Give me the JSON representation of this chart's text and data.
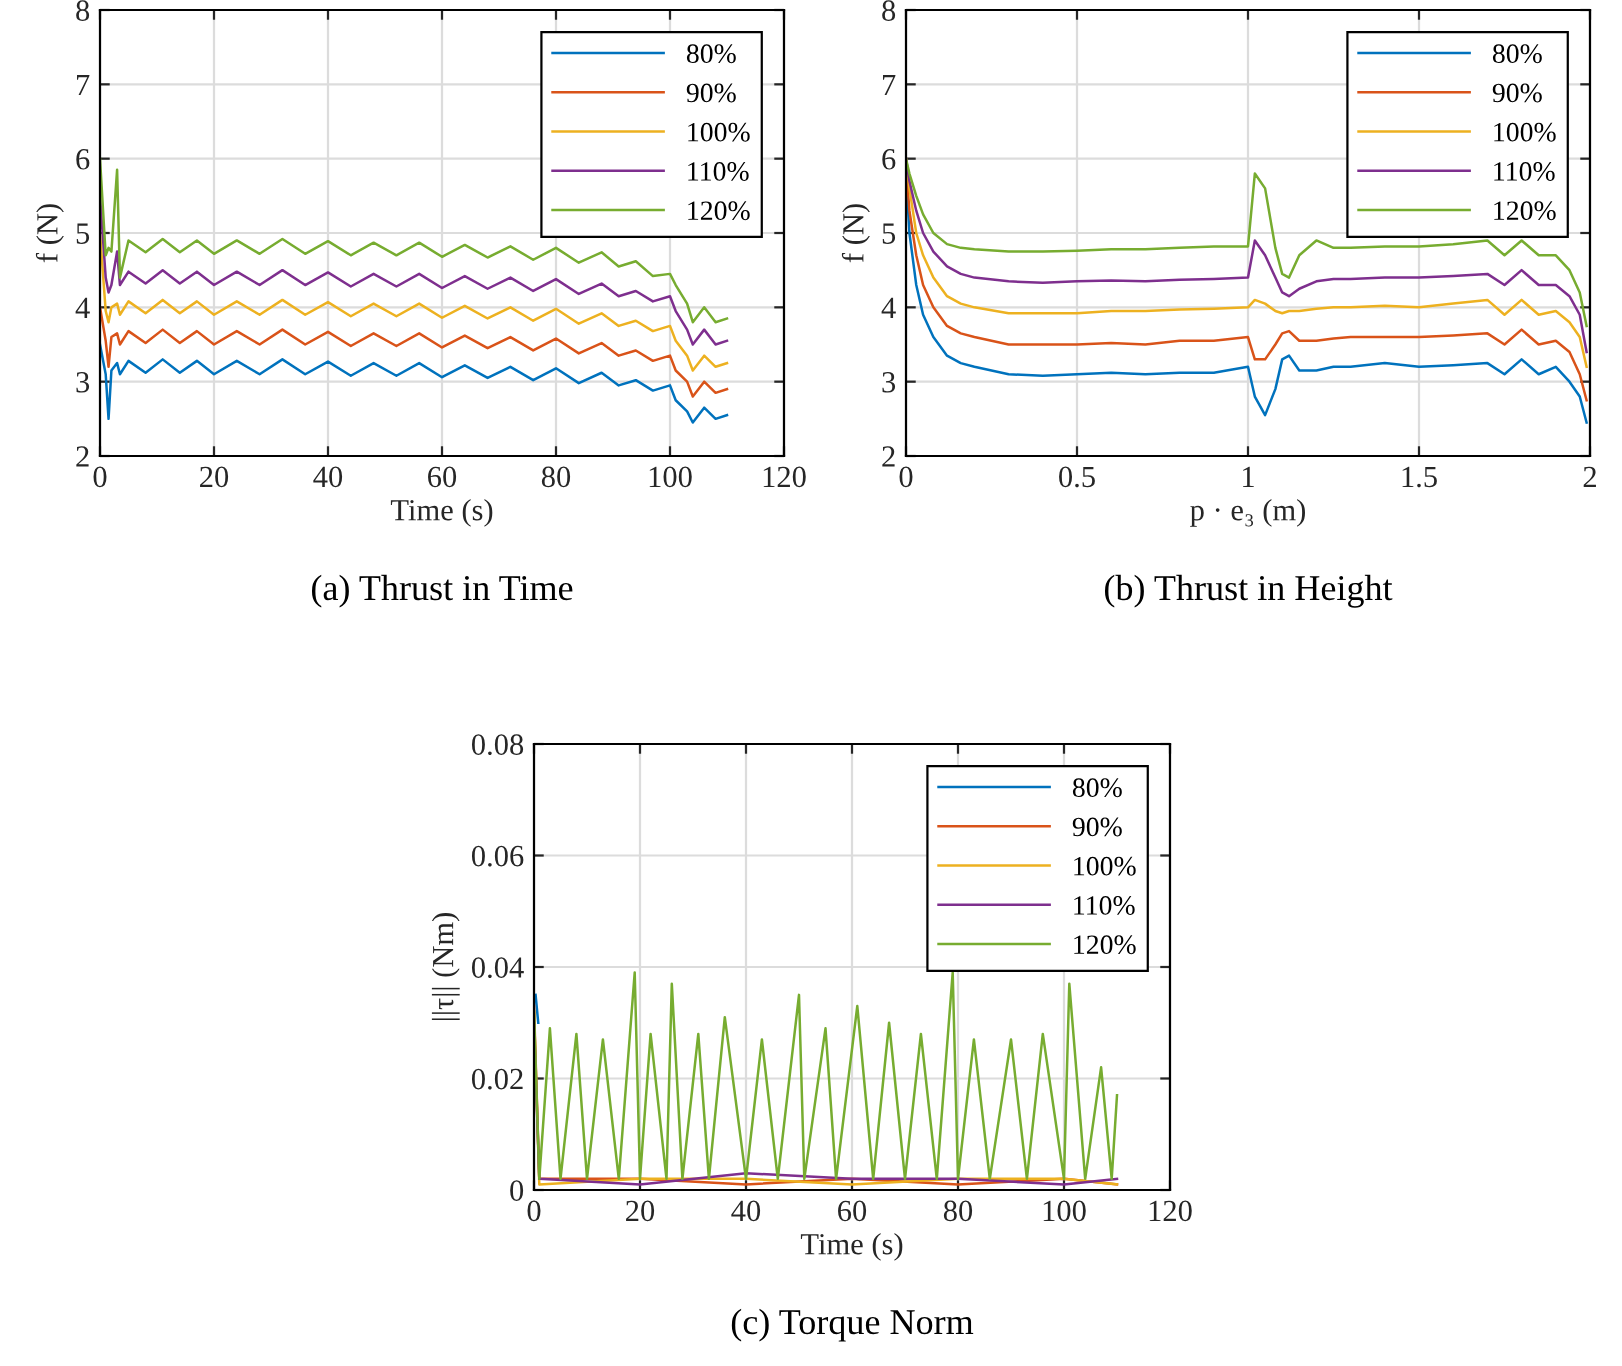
{
  "chart_data": [
    {
      "type": "line",
      "title": "(a) Thrust in Time",
      "xlabel": "Time (s)",
      "ylabel": "f (N)",
      "xlim": [
        0,
        120
      ],
      "ylim": [
        2,
        8
      ],
      "xticks": [
        0,
        20,
        40,
        60,
        80,
        100,
        120
      ],
      "yticks": [
        2,
        3,
        4,
        5,
        6,
        7,
        8
      ],
      "grid": true,
      "legend": "top right",
      "x": [
        0,
        1,
        1.5,
        2,
        3,
        3.5,
        5,
        8,
        11,
        14,
        17,
        20,
        24,
        28,
        32,
        36,
        40,
        44,
        48,
        52,
        56,
        60,
        64,
        68,
        72,
        76,
        80,
        84,
        88,
        91,
        94,
        97,
        100,
        101,
        103,
        104,
        106,
        108,
        110
      ],
      "series": [
        {
          "name": "80%",
          "color": "#0072bd",
          "values": [
            3.5,
            3.1,
            2.5,
            3.15,
            3.25,
            3.1,
            3.28,
            3.12,
            3.3,
            3.12,
            3.28,
            3.1,
            3.28,
            3.1,
            3.3,
            3.1,
            3.27,
            3.08,
            3.25,
            3.08,
            3.25,
            3.06,
            3.22,
            3.05,
            3.2,
            3.02,
            3.18,
            2.98,
            3.12,
            2.95,
            3.02,
            2.88,
            2.95,
            2.75,
            2.6,
            2.45,
            2.65,
            2.5,
            2.55
          ]
        },
        {
          "name": "90%",
          "color": "#d95319",
          "values": [
            4.0,
            3.55,
            3.2,
            3.6,
            3.65,
            3.5,
            3.68,
            3.52,
            3.7,
            3.52,
            3.68,
            3.5,
            3.68,
            3.5,
            3.7,
            3.5,
            3.67,
            3.48,
            3.65,
            3.48,
            3.65,
            3.46,
            3.62,
            3.45,
            3.6,
            3.42,
            3.58,
            3.38,
            3.52,
            3.35,
            3.42,
            3.28,
            3.35,
            3.15,
            3.0,
            2.8,
            3.0,
            2.85,
            2.9
          ]
        },
        {
          "name": "100%",
          "color": "#edb120",
          "values": [
            5.0,
            3.95,
            3.8,
            4.0,
            4.05,
            3.9,
            4.08,
            3.92,
            4.1,
            3.92,
            4.08,
            3.9,
            4.08,
            3.9,
            4.1,
            3.9,
            4.07,
            3.88,
            4.05,
            3.88,
            4.05,
            3.86,
            4.02,
            3.85,
            4.0,
            3.82,
            3.98,
            3.78,
            3.92,
            3.75,
            3.82,
            3.68,
            3.75,
            3.55,
            3.35,
            3.15,
            3.35,
            3.2,
            3.25
          ]
        },
        {
          "name": "110%",
          "color": "#7e2f8e",
          "values": [
            5.5,
            4.4,
            4.2,
            4.3,
            4.75,
            4.3,
            4.48,
            4.32,
            4.5,
            4.32,
            4.48,
            4.3,
            4.48,
            4.3,
            4.5,
            4.3,
            4.47,
            4.28,
            4.45,
            4.28,
            4.45,
            4.26,
            4.42,
            4.25,
            4.4,
            4.22,
            4.38,
            4.18,
            4.32,
            4.15,
            4.22,
            4.08,
            4.15,
            3.95,
            3.7,
            3.5,
            3.7,
            3.5,
            3.55
          ]
        },
        {
          "name": "120%",
          "color": "#77ac30",
          "values": [
            6.0,
            4.7,
            4.8,
            4.75,
            5.85,
            4.4,
            4.9,
            4.74,
            4.92,
            4.74,
            4.9,
            4.72,
            4.9,
            4.72,
            4.92,
            4.72,
            4.89,
            4.7,
            4.87,
            4.7,
            4.87,
            4.68,
            4.84,
            4.67,
            4.82,
            4.64,
            4.8,
            4.6,
            4.74,
            4.55,
            4.62,
            4.42,
            4.45,
            4.3,
            4.05,
            3.8,
            4.0,
            3.8,
            3.85
          ]
        }
      ]
    },
    {
      "type": "line",
      "title": "(b) Thrust in Height",
      "xlabel": "p · e₃ (m)",
      "ylabel": "f (N)",
      "xlim": [
        0,
        2
      ],
      "ylim": [
        2,
        8
      ],
      "xticks": [
        0,
        0.5,
        1,
        1.5,
        2
      ],
      "yticks": [
        2,
        3,
        4,
        5,
        6,
        7,
        8
      ],
      "grid": true,
      "legend": "top right",
      "x": [
        0,
        0.01,
        0.03,
        0.05,
        0.08,
        0.12,
        0.16,
        0.2,
        0.3,
        0.4,
        0.5,
        0.6,
        0.7,
        0.8,
        0.9,
        1.0,
        1.02,
        1.05,
        1.08,
        1.1,
        1.12,
        1.15,
        1.2,
        1.25,
        1.3,
        1.4,
        1.5,
        1.6,
        1.7,
        1.75,
        1.8,
        1.85,
        1.9,
        1.94,
        1.97,
        1.99
      ],
      "series": [
        {
          "name": "80%",
          "color": "#0072bd",
          "values": [
            5.8,
            5.0,
            4.3,
            3.9,
            3.6,
            3.35,
            3.25,
            3.2,
            3.1,
            3.08,
            3.1,
            3.12,
            3.1,
            3.12,
            3.12,
            3.2,
            2.8,
            2.55,
            2.9,
            3.3,
            3.35,
            3.15,
            3.15,
            3.2,
            3.2,
            3.25,
            3.2,
            3.22,
            3.25,
            3.1,
            3.3,
            3.1,
            3.2,
            3.0,
            2.8,
            2.45
          ]
        },
        {
          "name": "90%",
          "color": "#d95319",
          "values": [
            5.9,
            5.3,
            4.7,
            4.3,
            4.0,
            3.75,
            3.65,
            3.6,
            3.5,
            3.5,
            3.5,
            3.52,
            3.5,
            3.55,
            3.55,
            3.6,
            3.3,
            3.3,
            3.5,
            3.65,
            3.68,
            3.55,
            3.55,
            3.58,
            3.6,
            3.6,
            3.6,
            3.62,
            3.65,
            3.5,
            3.7,
            3.5,
            3.55,
            3.4,
            3.1,
            2.75
          ]
        },
        {
          "name": "100%",
          "color": "#edb120",
          "values": [
            6.0,
            5.6,
            5.0,
            4.7,
            4.4,
            4.15,
            4.05,
            4.0,
            3.92,
            3.92,
            3.92,
            3.95,
            3.95,
            3.97,
            3.98,
            4.0,
            4.1,
            4.05,
            3.95,
            3.92,
            3.95,
            3.95,
            3.98,
            4.0,
            4.0,
            4.02,
            4.0,
            4.05,
            4.1,
            3.9,
            4.1,
            3.9,
            3.95,
            3.8,
            3.6,
            3.2
          ]
        },
        {
          "name": "110%",
          "color": "#7e2f8e",
          "values": [
            6.0,
            5.7,
            5.3,
            5.0,
            4.75,
            4.55,
            4.45,
            4.4,
            4.35,
            4.33,
            4.35,
            4.36,
            4.35,
            4.37,
            4.38,
            4.4,
            4.9,
            4.7,
            4.4,
            4.2,
            4.15,
            4.25,
            4.35,
            4.38,
            4.38,
            4.4,
            4.4,
            4.42,
            4.45,
            4.3,
            4.5,
            4.3,
            4.3,
            4.15,
            3.9,
            3.4
          ]
        },
        {
          "name": "120%",
          "color": "#77ac30",
          "values": [
            6.0,
            5.8,
            5.5,
            5.25,
            5.0,
            4.85,
            4.8,
            4.78,
            4.75,
            4.75,
            4.76,
            4.78,
            4.78,
            4.8,
            4.82,
            4.82,
            5.8,
            5.6,
            4.8,
            4.45,
            4.4,
            4.7,
            4.9,
            4.8,
            4.8,
            4.82,
            4.82,
            4.85,
            4.9,
            4.7,
            4.9,
            4.7,
            4.7,
            4.5,
            4.2,
            3.75
          ]
        }
      ]
    },
    {
      "type": "line",
      "title": "(c) Torque Norm",
      "xlabel": "Time (s)",
      "ylabel": "||τ|| (Nm)",
      "xlim": [
        0,
        120
      ],
      "ylim": [
        0,
        0.08
      ],
      "xticks": [
        0,
        20,
        40,
        60,
        80,
        100,
        120
      ],
      "yticks": [
        0,
        0.02,
        0.04,
        0.06,
        0.08
      ],
      "grid": true,
      "legend": "top right",
      "series": [
        {
          "name": "80%",
          "color": "#0072bd",
          "x": [
            0.3,
            0.8
          ],
          "values": [
            0.035,
            0.03
          ]
        },
        {
          "name": "90%",
          "color": "#d95319",
          "x": [
            0,
            1,
            20,
            40,
            60,
            80,
            100,
            110
          ],
          "values": [
            0.033,
            0.002,
            0.002,
            0.001,
            0.002,
            0.001,
            0.002,
            0.001
          ]
        },
        {
          "name": "100%",
          "color": "#edb120",
          "x": [
            0,
            1,
            20,
            40,
            60,
            80,
            100,
            110
          ],
          "values": [
            0.032,
            0.001,
            0.002,
            0.002,
            0.001,
            0.002,
            0.002,
            0.001
          ]
        },
        {
          "name": "110%",
          "color": "#7e2f8e",
          "x": [
            0,
            1,
            20,
            40,
            60,
            80,
            100,
            110
          ],
          "values": [
            0.03,
            0.002,
            0.001,
            0.003,
            0.002,
            0.002,
            0.001,
            0.002
          ]
        },
        {
          "name": "120%",
          "color": "#77ac30",
          "x": [
            0,
            1,
            3,
            5,
            8,
            10,
            13,
            16,
            19,
            20,
            22,
            25,
            26,
            28,
            31,
            33,
            36,
            40,
            43,
            46,
            50,
            51,
            55,
            57,
            61,
            64,
            67,
            70,
            73,
            76,
            79,
            80,
            83,
            86,
            90,
            93,
            96,
            100,
            101,
            104,
            107,
            109,
            110
          ],
          "values": [
            0.032,
            0.002,
            0.029,
            0.002,
            0.028,
            0.002,
            0.027,
            0.002,
            0.039,
            0.002,
            0.028,
            0.002,
            0.037,
            0.002,
            0.028,
            0.002,
            0.031,
            0.002,
            0.027,
            0.002,
            0.035,
            0.002,
            0.029,
            0.002,
            0.033,
            0.002,
            0.03,
            0.002,
            0.028,
            0.002,
            0.039,
            0.002,
            0.027,
            0.002,
            0.027,
            0.002,
            0.028,
            0.002,
            0.037,
            0.002,
            0.022,
            0.002,
            0.017
          ]
        }
      ]
    }
  ]
}
